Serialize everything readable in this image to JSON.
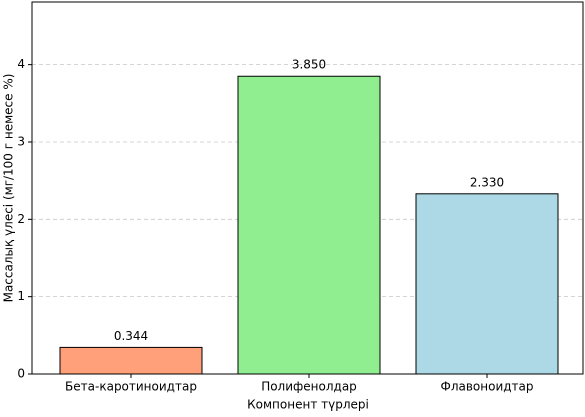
{
  "chart_data": {
    "type": "bar",
    "xlabel": "Компонент түрлері",
    "ylabel": "Массалық үлесі (мг/100 г немесе %)",
    "categories": [
      "Бета-каротиноидтар",
      "Полифенолдар",
      "Флавоноидтар"
    ],
    "values": [
      0.344,
      3.85,
      2.33
    ],
    "value_labels": [
      "0.344",
      "3.850",
      "2.330"
    ],
    "colors": [
      "#ffa07a",
      "#90ee90",
      "#add8e6"
    ],
    "ylim": [
      0,
      4.81
    ],
    "yticks": [
      0,
      1,
      2,
      3,
      4
    ],
    "grid": true
  }
}
